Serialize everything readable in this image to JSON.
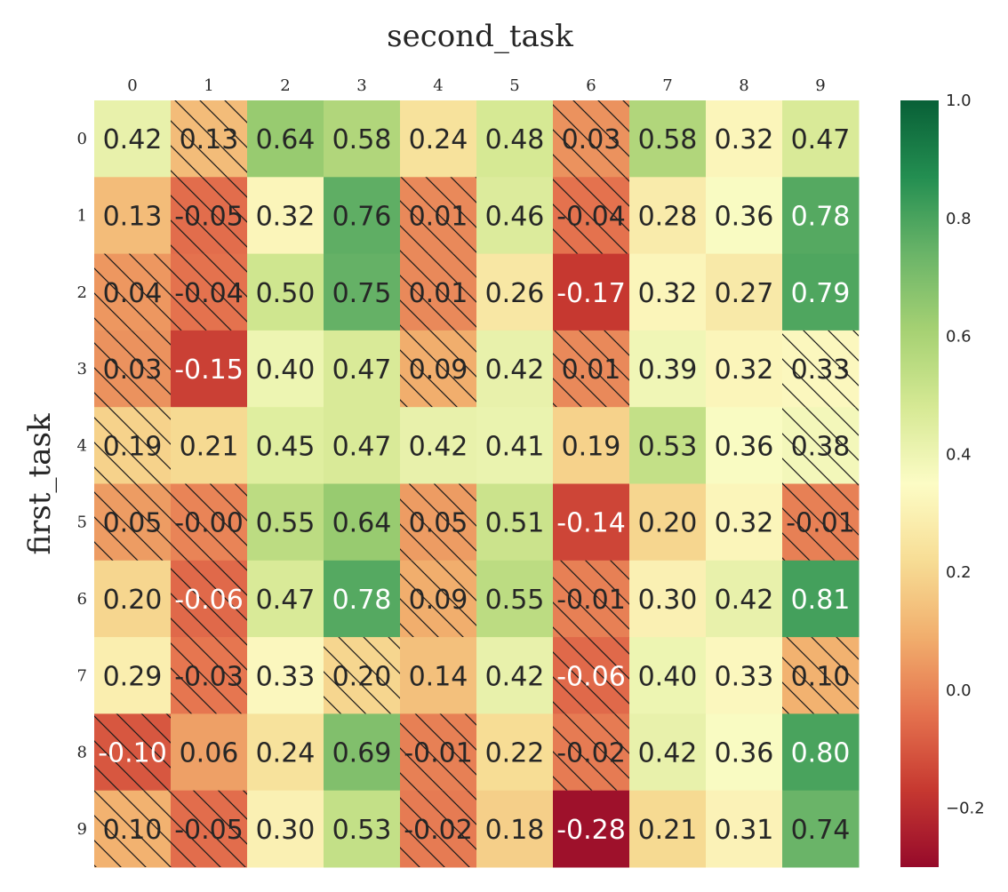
{
  "chart_data": {
    "type": "heatmap",
    "title": "second_task",
    "xlabel": "second_task",
    "ylabel": "first_task",
    "x_categories": [
      "0",
      "1",
      "2",
      "3",
      "4",
      "5",
      "6",
      "7",
      "8",
      "9"
    ],
    "y_categories": [
      "0",
      "1",
      "2",
      "3",
      "4",
      "5",
      "6",
      "7",
      "8",
      "9"
    ],
    "values": [
      [
        0.42,
        0.13,
        0.64,
        0.58,
        0.24,
        0.48,
        0.03,
        0.58,
        0.32,
        0.47
      ],
      [
        0.13,
        -0.05,
        0.32,
        0.76,
        0.01,
        0.46,
        -0.04,
        0.28,
        0.36,
        0.78
      ],
      [
        0.04,
        -0.04,
        0.5,
        0.75,
        0.01,
        0.26,
        -0.17,
        0.32,
        0.27,
        0.79
      ],
      [
        0.03,
        -0.15,
        0.4,
        0.47,
        0.09,
        0.42,
        0.01,
        0.39,
        0.32,
        0.33
      ],
      [
        0.19,
        0.21,
        0.45,
        0.47,
        0.42,
        0.41,
        0.19,
        0.53,
        0.36,
        0.38
      ],
      [
        0.05,
        -0.0,
        0.55,
        0.64,
        0.05,
        0.51,
        -0.14,
        0.2,
        0.32,
        -0.01
      ],
      [
        0.2,
        -0.06,
        0.47,
        0.78,
        0.09,
        0.55,
        -0.01,
        0.3,
        0.42,
        0.81
      ],
      [
        0.29,
        -0.03,
        0.33,
        0.2,
        0.14,
        0.42,
        -0.06,
        0.4,
        0.33,
        0.1
      ],
      [
        -0.1,
        0.06,
        0.24,
        0.69,
        -0.01,
        0.22,
        -0.02,
        0.42,
        0.36,
        0.8
      ],
      [
        0.1,
        -0.05,
        0.3,
        0.53,
        -0.02,
        0.18,
        -0.28,
        0.21,
        0.31,
        0.74
      ]
    ],
    "hatched": [
      [
        false,
        true,
        false,
        false,
        false,
        false,
        true,
        false,
        false,
        false
      ],
      [
        false,
        true,
        false,
        false,
        true,
        false,
        true,
        false,
        false,
        false
      ],
      [
        true,
        true,
        false,
        false,
        true,
        false,
        false,
        false,
        false,
        false
      ],
      [
        true,
        false,
        false,
        false,
        true,
        false,
        true,
        false,
        false,
        true
      ],
      [
        true,
        false,
        false,
        false,
        false,
        false,
        false,
        false,
        false,
        true
      ],
      [
        true,
        true,
        false,
        false,
        true,
        false,
        false,
        false,
        false,
        true
      ],
      [
        false,
        true,
        false,
        false,
        true,
        false,
        true,
        false,
        false,
        false
      ],
      [
        false,
        true,
        false,
        true,
        false,
        false,
        true,
        false,
        false,
        true
      ],
      [
        true,
        false,
        false,
        false,
        true,
        false,
        true,
        false,
        false,
        false
      ],
      [
        true,
        true,
        false,
        false,
        true,
        false,
        false,
        false,
        false,
        false
      ]
    ],
    "colormap": "RdYlGn",
    "vmin": -0.3,
    "vmax": 1.0,
    "colorbar_ticks": [
      "1.0",
      "0.8",
      "0.6",
      "0.4",
      "0.2",
      "0.0",
      "−0.2"
    ],
    "colorbar_tick_values": [
      1.0,
      0.8,
      0.6,
      0.4,
      0.2,
      0.0,
      -0.2
    ],
    "grid": false
  }
}
